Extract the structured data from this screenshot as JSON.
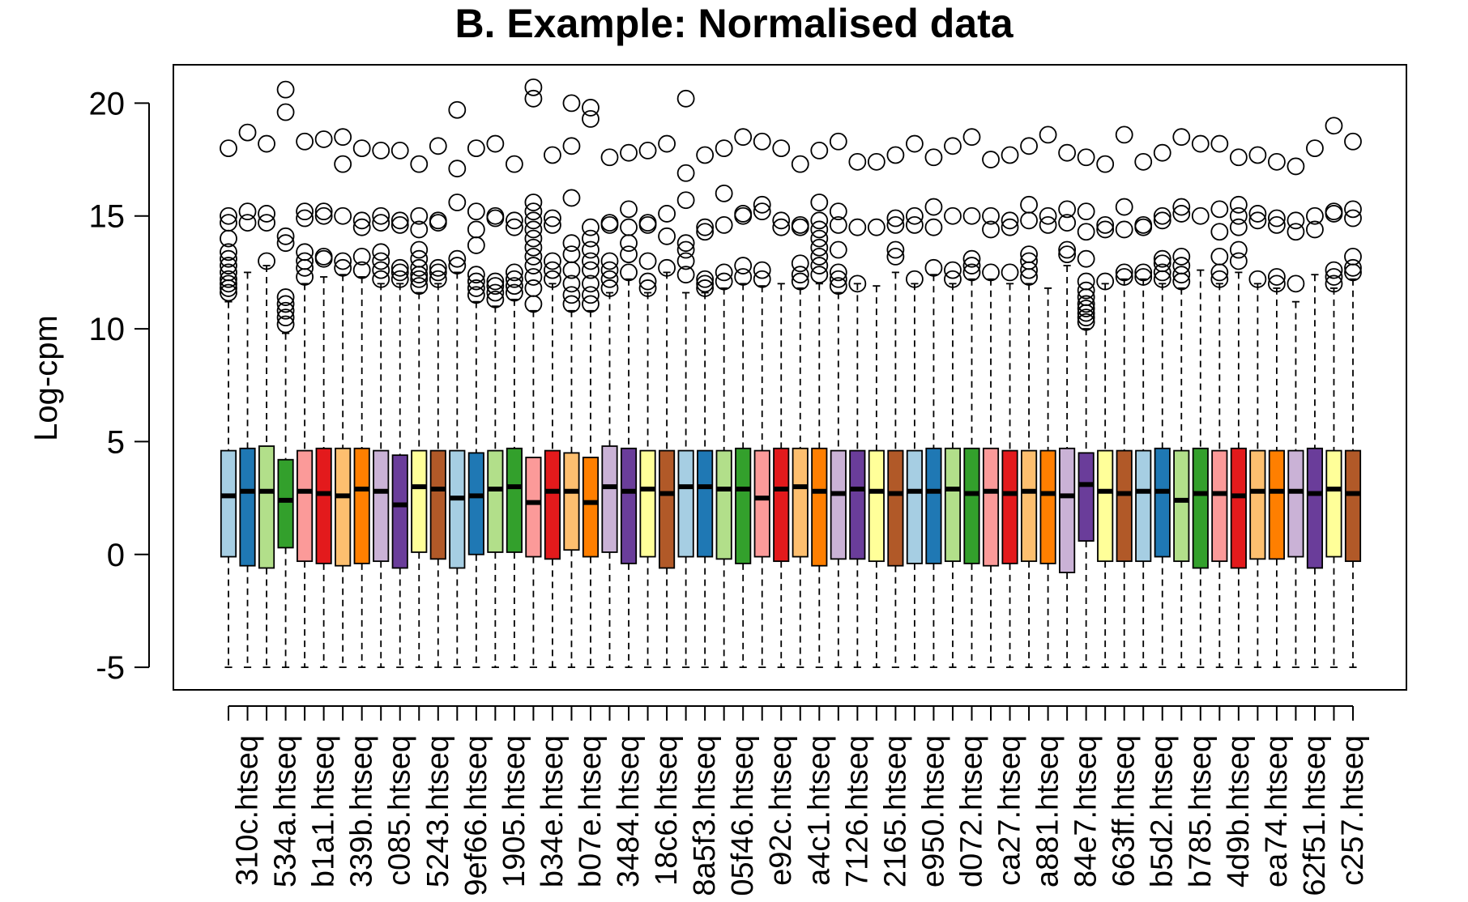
{
  "chart_data": {
    "type": "box",
    "title": "B. Example: Normalised data",
    "xlabel": "",
    "ylabel": "Log-cpm",
    "ylim": [
      -6.0,
      21.7
    ],
    "yticks": [
      -5,
      0,
      5,
      10,
      15,
      20
    ],
    "grid": false,
    "legend": "none",
    "palette": [
      "#a6cee3",
      "#1f78b4",
      "#b2df8a",
      "#33a02c",
      "#fb9a99",
      "#e31a1c",
      "#fdbf6f",
      "#ff7f00",
      "#cab2d6",
      "#6a3d9a",
      "#ffff99",
      "#b15928"
    ],
    "categories": [
      "310c.htseq",
      "534a.htseq",
      "b1a1.htseq",
      "339b.htseq",
      "c085.htseq",
      "5243.htseq",
      "9ef66.htseq",
      "1905.htseq",
      "b34e.htseq",
      "b07e.htseq",
      "3484.htseq",
      "18c6.htseq",
      "8a5f3.htseq",
      "05f46.htseq",
      "e92c.htseq",
      "a4c1.htseq",
      "7126.htseq",
      "2165.htseq",
      "e950.htseq",
      "d072.htseq",
      "ca27.htseq",
      "a881.htseq",
      "84e7.htseq",
      "663ff.htseq",
      "b5d2.htseq",
      "b785.htseq",
      "4d9b.htseq",
      "ea74.htseq",
      "62f51.htseq",
      "c257.htseq"
    ],
    "series": [
      {
        "q1": -0.1,
        "median": 2.6,
        "q3": 4.6,
        "lower": -5,
        "upper": 11.2,
        "outliers": [
          11.6,
          11.8,
          12.0,
          12.2,
          12.5,
          12.8,
          13.1,
          13.4,
          14.0,
          14.7,
          15.0,
          18.0
        ]
      },
      {
        "q1": -0.5,
        "median": 2.8,
        "q3": 4.7,
        "lower": -5,
        "upper": 12.5,
        "outliers": [
          14.7,
          15.2,
          18.7
        ]
      },
      {
        "q1": -0.6,
        "median": 2.8,
        "q3": 4.8,
        "lower": -5,
        "upper": 12.8,
        "outliers": [
          13.0,
          14.7,
          15.1,
          18.2
        ]
      },
      {
        "q1": 0.3,
        "median": 2.4,
        "q3": 4.2,
        "lower": -5,
        "upper": 9.8,
        "outliers": [
          10.2,
          10.5,
          10.8,
          11.1,
          11.4,
          13.8,
          14.1,
          19.6,
          20.6
        ]
      },
      {
        "q1": -0.3,
        "median": 2.8,
        "q3": 4.6,
        "lower": -5,
        "upper": 12.0,
        "outliers": [
          12.3,
          12.7,
          13.0,
          13.4,
          14.9,
          15.2,
          18.3
        ]
      },
      {
        "q1": -0.4,
        "median": 2.7,
        "q3": 4.7,
        "lower": -5,
        "upper": 12.3,
        "outliers": [
          13.1,
          13.2,
          15.0,
          15.2,
          18.4
        ]
      },
      {
        "q1": -0.5,
        "median": 2.6,
        "q3": 4.7,
        "lower": -5,
        "upper": 12.4,
        "outliers": [
          12.7,
          13.0,
          15.0,
          17.3,
          18.5
        ]
      },
      {
        "q1": -0.4,
        "median": 2.9,
        "q3": 4.7,
        "lower": -5,
        "upper": 12.3,
        "outliers": [
          12.6,
          13.2,
          14.5,
          14.8,
          18.0
        ]
      },
      {
        "q1": -0.3,
        "median": 2.8,
        "q3": 4.6,
        "lower": -5,
        "upper": 12.0,
        "outliers": [
          12.2,
          12.6,
          13.0,
          13.4,
          14.7,
          15.0,
          17.9
        ]
      },
      {
        "q1": -0.6,
        "median": 2.2,
        "q3": 4.4,
        "lower": -5,
        "upper": 12.0,
        "outliers": [
          12.2,
          12.5,
          12.7,
          14.6,
          14.8,
          17.9
        ]
      },
      {
        "q1": 0.1,
        "median": 3.0,
        "q3": 4.6,
        "lower": -5,
        "upper": 11.6,
        "outliers": [
          11.9,
          12.2,
          12.4,
          12.7,
          13.1,
          13.5,
          14.4,
          15.0,
          17.3
        ]
      },
      {
        "q1": -0.2,
        "median": 2.9,
        "q3": 4.6,
        "lower": -5,
        "upper": 12.0,
        "outliers": [
          12.2,
          12.5,
          12.7,
          14.7,
          14.8,
          18.1
        ]
      },
      {
        "q1": -0.6,
        "median": 2.5,
        "q3": 4.6,
        "lower": -5,
        "upper": 12.5,
        "outliers": [
          12.8,
          13.1,
          15.6,
          17.1,
          19.7
        ]
      },
      {
        "q1": 0.0,
        "median": 2.6,
        "q3": 4.5,
        "lower": -5,
        "upper": 11.2,
        "outliers": [
          11.5,
          11.8,
          12.1,
          12.4,
          13.7,
          14.4,
          15.2,
          18.0
        ]
      },
      {
        "q1": 0.1,
        "median": 2.9,
        "q3": 4.6,
        "lower": -5,
        "upper": 11.0,
        "outliers": [
          11.3,
          11.6,
          11.9,
          12.1,
          14.9,
          15.0,
          18.2
        ]
      },
      {
        "q1": 0.1,
        "median": 3.0,
        "q3": 4.7,
        "lower": -5,
        "upper": 11.3,
        "outliers": [
          11.6,
          11.9,
          12.2,
          12.5,
          14.5,
          14.8,
          17.3
        ]
      },
      {
        "q1": -0.1,
        "median": 2.3,
        "q3": 4.3,
        "lower": -5,
        "upper": 10.8,
        "outliers": [
          11.1,
          11.8,
          12.3,
          12.8,
          13.2,
          13.6,
          14.0,
          14.4,
          14.8,
          15.2,
          15.6,
          20.2,
          20.7
        ]
      },
      {
        "q1": -0.2,
        "median": 2.8,
        "q3": 4.6,
        "lower": -5,
        "upper": 12.0,
        "outliers": [
          12.2,
          12.6,
          13.0,
          14.6,
          14.9,
          17.7
        ]
      },
      {
        "q1": 0.2,
        "median": 2.8,
        "q3": 4.5,
        "lower": -5,
        "upper": 10.8,
        "outliers": [
          11.1,
          11.5,
          12.0,
          12.6,
          13.3,
          13.8,
          15.8,
          18.1,
          20.0
        ]
      },
      {
        "q1": -0.1,
        "median": 2.3,
        "q3": 4.3,
        "lower": -5,
        "upper": 10.8,
        "outliers": [
          11.1,
          11.5,
          12.0,
          12.6,
          13.0,
          13.5,
          14.0,
          14.5,
          19.3,
          19.8
        ]
      },
      {
        "q1": 0.1,
        "median": 3.0,
        "q3": 4.8,
        "lower": -5,
        "upper": 11.6,
        "outliers": [
          11.8,
          12.2,
          12.6,
          13.0,
          14.6,
          14.7,
          17.6
        ]
      },
      {
        "q1": -0.4,
        "median": 2.8,
        "q3": 4.7,
        "lower": -5,
        "upper": 12.2,
        "outliers": [
          12.5,
          13.3,
          13.8,
          14.5,
          15.3,
          17.8
        ]
      },
      {
        "q1": -0.1,
        "median": 2.9,
        "q3": 4.6,
        "lower": -5,
        "upper": 11.6,
        "outliers": [
          11.8,
          12.1,
          13.0,
          14.6,
          14.7,
          17.9
        ]
      },
      {
        "q1": -0.6,
        "median": 2.7,
        "q3": 4.6,
        "lower": -5,
        "upper": 12.5,
        "outliers": [
          12.7,
          14.1,
          15.1,
          18.2
        ]
      },
      {
        "q1": -0.1,
        "median": 3.0,
        "q3": 4.6,
        "lower": -5,
        "upper": 11.6,
        "outliers": [
          12.4,
          13.0,
          13.5,
          13.8,
          15.7,
          16.9,
          20.2
        ]
      },
      {
        "q1": -0.1,
        "median": 3.0,
        "q3": 4.6,
        "lower": -5,
        "upper": 11.6,
        "outliers": [
          11.8,
          12.0,
          12.2,
          14.3,
          14.5,
          17.7
        ]
      },
      {
        "q1": -0.2,
        "median": 2.9,
        "q3": 4.6,
        "lower": -5,
        "upper": 11.8,
        "outliers": [
          12.1,
          12.5,
          14.6,
          16.0,
          18.0
        ]
      },
      {
        "q1": -0.4,
        "median": 2.9,
        "q3": 4.7,
        "lower": -5,
        "upper": 12.0,
        "outliers": [
          12.3,
          12.8,
          15.0,
          15.1,
          18.5
        ]
      },
      {
        "q1": -0.1,
        "median": 2.5,
        "q3": 4.6,
        "lower": -5,
        "upper": 11.9,
        "outliers": [
          12.2,
          12.6,
          15.2,
          15.5,
          18.3
        ]
      },
      {
        "q1": -0.3,
        "median": 2.9,
        "q3": 4.7,
        "lower": -5,
        "upper": 12.0,
        "outliers": [
          14.5,
          14.8,
          18.0
        ]
      },
      {
        "q1": -0.1,
        "median": 3.0,
        "q3": 4.7,
        "lower": -5,
        "upper": 11.8,
        "outliers": [
          12.1,
          12.4,
          12.9,
          14.5,
          14.6,
          17.3
        ]
      },
      {
        "q1": -0.5,
        "median": 2.8,
        "q3": 4.7,
        "lower": -5,
        "upper": 12.0,
        "outliers": [
          12.4,
          12.8,
          13.2,
          13.6,
          14.0,
          14.4,
          14.8,
          15.6,
          17.9
        ]
      },
      {
        "q1": -0.2,
        "median": 2.7,
        "q3": 4.6,
        "lower": -5,
        "upper": 11.6,
        "outliers": [
          11.9,
          12.2,
          12.5,
          13.5,
          14.6,
          15.2,
          18.3
        ]
      },
      {
        "q1": -0.2,
        "median": 2.9,
        "q3": 4.6,
        "lower": -5,
        "upper": 12.0,
        "outliers": [
          12.0,
          14.5,
          17.4
        ]
      },
      {
        "q1": -0.3,
        "median": 2.8,
        "q3": 4.6,
        "lower": -5,
        "upper": 11.9,
        "outliers": [
          14.5,
          17.4
        ]
      },
      {
        "q1": -0.5,
        "median": 2.7,
        "q3": 4.6,
        "lower": -5,
        "upper": 12.5,
        "outliers": [
          13.2,
          13.5,
          14.6,
          14.9,
          17.7
        ]
      },
      {
        "q1": -0.4,
        "median": 2.8,
        "q3": 4.6,
        "lower": -5,
        "upper": 12.0,
        "outliers": [
          12.2,
          14.6,
          15.0,
          18.2
        ]
      },
      {
        "q1": -0.4,
        "median": 2.8,
        "q3": 4.7,
        "lower": -5,
        "upper": 12.4,
        "outliers": [
          12.7,
          14.5,
          15.4,
          17.6
        ]
      },
      {
        "q1": -0.3,
        "median": 2.9,
        "q3": 4.7,
        "lower": -5,
        "upper": 12.0,
        "outliers": [
          12.2,
          12.6,
          15.0,
          18.1
        ]
      },
      {
        "q1": -0.4,
        "median": 2.7,
        "q3": 4.7,
        "lower": -5,
        "upper": 12.2,
        "outliers": [
          12.5,
          12.8,
          13.1,
          15.0,
          18.5
        ]
      },
      {
        "q1": -0.5,
        "median": 2.8,
        "q3": 4.7,
        "lower": -5,
        "upper": 12.2,
        "outliers": [
          12.5,
          14.4,
          15.0,
          17.5
        ]
      },
      {
        "q1": -0.4,
        "median": 2.7,
        "q3": 4.6,
        "lower": -5,
        "upper": 12.0,
        "outliers": [
          12.5,
          14.5,
          14.8,
          17.7
        ]
      },
      {
        "q1": -0.3,
        "median": 2.8,
        "q3": 4.6,
        "lower": -5,
        "upper": 12.0,
        "outliers": [
          12.3,
          12.6,
          13.0,
          13.3,
          14.8,
          15.5,
          18.1
        ]
      },
      {
        "q1": -0.4,
        "median": 2.7,
        "q3": 4.6,
        "lower": -5,
        "upper": 11.8,
        "outliers": [
          14.6,
          15.0,
          18.6
        ]
      },
      {
        "q1": -0.8,
        "median": 2.6,
        "q3": 4.7,
        "lower": -5,
        "upper": 12.8,
        "outliers": [
          13.3,
          13.5,
          14.7,
          15.3,
          17.8
        ]
      },
      {
        "q1": 0.6,
        "median": 3.1,
        "q3": 4.5,
        "lower": -5,
        "upper": 10.0,
        "outliers": [
          10.3,
          10.5,
          10.7,
          10.9,
          11.1,
          11.4,
          11.7,
          12.1,
          13.1,
          14.3,
          15.2,
          17.6
        ]
      },
      {
        "q1": -0.3,
        "median": 2.8,
        "q3": 4.6,
        "lower": -5,
        "upper": 12.0,
        "outliers": [
          12.1,
          14.4,
          14.6,
          17.3
        ]
      },
      {
        "q1": -0.3,
        "median": 2.7,
        "q3": 4.6,
        "lower": -5,
        "upper": 12.2,
        "outliers": [
          12.3,
          12.5,
          14.4,
          15.4,
          18.6
        ]
      },
      {
        "q1": -0.3,
        "median": 2.8,
        "q3": 4.6,
        "lower": -5,
        "upper": 12.2,
        "outliers": [
          12.3,
          12.5,
          14.5,
          14.6,
          17.4
        ]
      },
      {
        "q1": -0.1,
        "median": 2.8,
        "q3": 4.7,
        "lower": -5,
        "upper": 12.0,
        "outliers": [
          12.2,
          12.5,
          12.9,
          13.1,
          14.8,
          15.0,
          17.8
        ]
      },
      {
        "q1": -0.3,
        "median": 2.4,
        "q3": 4.6,
        "lower": -5,
        "upper": 11.8,
        "outliers": [
          12.1,
          12.4,
          12.8,
          13.2,
          15.1,
          15.4,
          18.5
        ]
      },
      {
        "q1": -0.6,
        "median": 2.7,
        "q3": 4.7,
        "lower": -5,
        "upper": 12.6,
        "outliers": [
          15.0,
          18.2
        ]
      },
      {
        "q1": -0.3,
        "median": 2.7,
        "q3": 4.6,
        "lower": -5,
        "upper": 12.0,
        "outliers": [
          12.2,
          12.5,
          13.2,
          14.3,
          15.3,
          18.2
        ]
      },
      {
        "q1": -0.6,
        "median": 2.6,
        "q3": 4.7,
        "lower": -5,
        "upper": 12.5,
        "outliers": [
          13.0,
          13.5,
          14.5,
          15.0,
          15.5,
          17.6
        ]
      },
      {
        "q1": -0.2,
        "median": 2.8,
        "q3": 4.6,
        "lower": -5,
        "upper": 12.0,
        "outliers": [
          12.2,
          14.8,
          15.1,
          17.7
        ]
      },
      {
        "q1": -0.2,
        "median": 2.8,
        "q3": 4.6,
        "lower": -5,
        "upper": 11.8,
        "outliers": [
          12.0,
          12.3,
          14.6,
          14.9,
          17.4
        ]
      },
      {
        "q1": -0.1,
        "median": 2.8,
        "q3": 4.6,
        "lower": -5,
        "upper": 11.2,
        "outliers": [
          12.0,
          14.3,
          14.8,
          17.2
        ]
      },
      {
        "q1": -0.6,
        "median": 2.7,
        "q3": 4.7,
        "lower": -5,
        "upper": 12.4,
        "outliers": [
          14.4,
          15.0,
          18.0
        ]
      },
      {
        "q1": -0.1,
        "median": 2.9,
        "q3": 4.6,
        "lower": -5,
        "upper": 11.8,
        "outliers": [
          12.0,
          12.3,
          12.6,
          15.1,
          15.2,
          19.0
        ]
      },
      {
        "q1": -0.3,
        "median": 2.7,
        "q3": 4.6,
        "lower": -5,
        "upper": 12.2,
        "outliers": [
          12.5,
          12.7,
          13.2,
          14.9,
          15.3,
          18.3
        ]
      }
    ]
  }
}
